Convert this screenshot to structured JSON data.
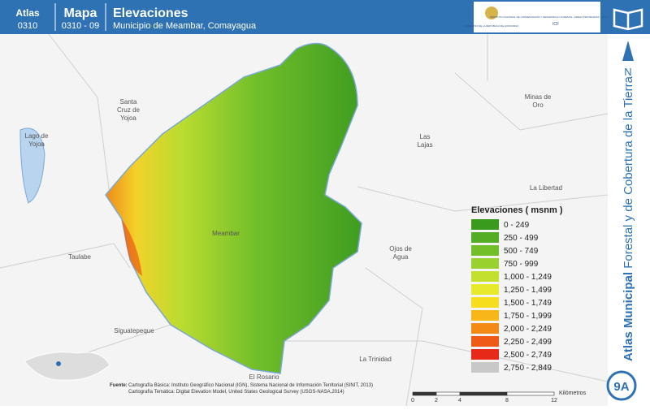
{
  "header": {
    "atlas_label": "Atlas",
    "atlas_code": "0310",
    "map_label": "Mapa",
    "map_code": "0310 - 09",
    "title": "Elevaciones",
    "subtitle": "Municipio de Meambar, Comayagua",
    "logo_left": "GOBIERNO DE LA REPÚBLICA DE HONDURAS",
    "logo_right": "INSTITUTO NACIONAL DE CONSERVACIÓN Y DESARROLLO FORESTAL, ÁREAS PROTEGIDAS Y VIDA SILVESTRE",
    "logo_acronym": "ICF"
  },
  "sidebar": {
    "north": "N",
    "title_bold": "Atlas Municipal",
    "title_rest": "Forestal y de Cobertura de la Tierra",
    "badge": "9A"
  },
  "places": [
    "Santa",
    "Cruz de",
    "Yojoa",
    "Lago de",
    "Yojoa",
    "Minas de",
    "Oro",
    "Las",
    "Lajas",
    "La Libertad",
    "Meambar",
    "Ojos de",
    "Agua",
    "Taulabe",
    "Siguatepeque",
    "La Trinidad",
    "El Rosario"
  ],
  "legend": {
    "title": "Elevaciones ( msnm )",
    "classes": [
      {
        "label": "0 - 249",
        "color": "#3a9a1e"
      },
      {
        "label": "250 - 499",
        "color": "#54ad25"
      },
      {
        "label": "500 - 749",
        "color": "#72bf2a"
      },
      {
        "label": "750 - 999",
        "color": "#99d12e"
      },
      {
        "label": "1,000 - 1,249",
        "color": "#c4e02f"
      },
      {
        "label": "1,250 - 1,499",
        "color": "#e6ea2b"
      },
      {
        "label": "1,500 - 1,749",
        "color": "#f6de1e"
      },
      {
        "label": "1,750 - 1,999",
        "color": "#f8b618"
      },
      {
        "label": "2,000 - 2,249",
        "color": "#f38a16"
      },
      {
        "label": "2,250 - 2,499",
        "color": "#ef5a16"
      },
      {
        "label": "2,500 - 2,749",
        "color": "#e72a18"
      },
      {
        "label": "2,750 - 2,849",
        "color": "#c8c8c8"
      }
    ]
  },
  "source": {
    "heading": "Fuente:",
    "line1": "Cartografía Básica: Instituto Geográfico Nacional (IGN), Sistema Nacional de Información Territorial (SINIT, 2013)",
    "line2": "Cartografía Temática: Digital Elevation Model, United States Geological Survey (USGS-NASA,2014)"
  },
  "scale": {
    "ticks": [
      0,
      2,
      4,
      8,
      12
    ],
    "unit": "Kilómetros"
  }
}
